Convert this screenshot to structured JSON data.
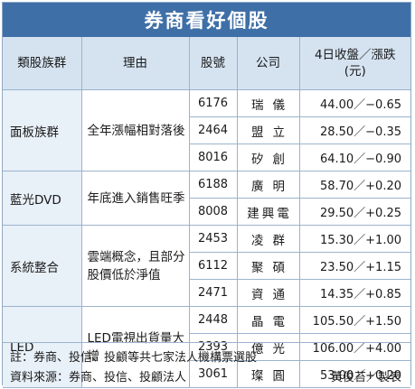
{
  "title": "券商看好個股",
  "headers": {
    "group": "類股族群",
    "reason": "理由",
    "code": "股號",
    "company": "公司",
    "price_line1": "4日收盤／漲跌",
    "price_line2": "(元)"
  },
  "groups": [
    {
      "name": "面板族群",
      "reason": "全年漲幅相對落後",
      "stocks": [
        {
          "code": "6176",
          "company": "瑞儀",
          "price": "44.00／−0.65"
        },
        {
          "code": "2464",
          "company": "盟立",
          "price": "28.50／−0.35"
        },
        {
          "code": "8016",
          "company": "矽創",
          "price": "64.10／−0.90"
        }
      ]
    },
    {
      "name": "藍光DVD",
      "reason": "年底進入銷售旺季",
      "stocks": [
        {
          "code": "6188",
          "company": "廣明",
          "price": "58.70／+0.20"
        },
        {
          "code": "8008",
          "company": "建興電",
          "price": "29.50／+0.25"
        }
      ]
    },
    {
      "name": "系統整合",
      "reason": "雲端概念，且部分股價低於淨值",
      "stocks": [
        {
          "code": "2453",
          "company": "凌群",
          "price": "15.30／+1.00"
        },
        {
          "code": "6112",
          "company": "聚碩",
          "price": "23.50／+1.15"
        },
        {
          "code": "2471",
          "company": "資通",
          "price": "14.35／+0.85"
        }
      ]
    },
    {
      "name": "LED",
      "reason": "LED電視出貨量大增",
      "stocks": [
        {
          "code": "2448",
          "company": "晶電",
          "price": "105.50／+1.50"
        },
        {
          "code": "2393",
          "company": "億光",
          "price": "106.00／+4.00"
        },
        {
          "code": "3061",
          "company": "璨圓",
          "price": "53.00／+0.20"
        }
      ]
    }
  ],
  "footer": {
    "note": "註：券商、投信、投顧等共七家法人機構票選股",
    "source": "資料來源：券商、投信、投顧法人",
    "credit": "黃俊苔／製表"
  },
  "colors": {
    "title_bar": "#3f6fa7",
    "header_bg": "#d5e3f1",
    "group_bg": "#e8f0f8",
    "border": "#9bb3cc"
  }
}
